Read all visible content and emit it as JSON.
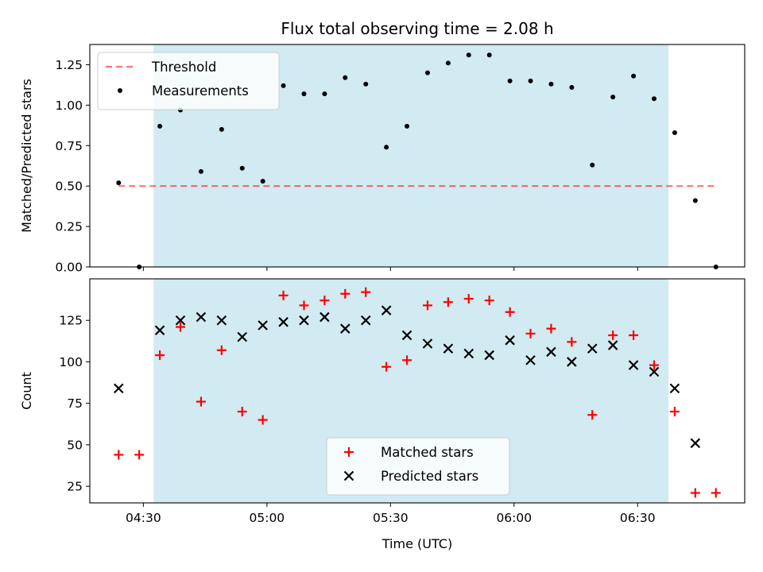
{
  "chart_data": {
    "title": "Flux total observing time = 2.08 h",
    "xlabel": "Time (UTC)",
    "x_ticks": [
      "04:30",
      "05:00",
      "05:30",
      "06:00",
      "06:30"
    ],
    "x_tick_minutes": [
      270,
      300,
      330,
      360,
      390
    ],
    "xlim_minutes": [
      257,
      416
    ],
    "shaded_span_minutes": [
      272.5,
      397.5
    ],
    "shade_color": "#add8e6",
    "panels": [
      {
        "type": "scatter",
        "ylabel": "Matched/Predicted stars",
        "ylim": [
          0,
          1.375
        ],
        "y_ticks": [
          "0.00",
          "0.25",
          "0.50",
          "0.75",
          "1.00",
          "1.25"
        ],
        "y_tick_values": [
          0,
          0.25,
          0.5,
          0.75,
          1.0,
          1.25
        ],
        "legend_position": "top-left",
        "threshold": {
          "name": "Threshold",
          "value": 0.5,
          "x_range": [
            264,
            409
          ],
          "color": "#ff0000",
          "style": "dashed"
        },
        "series": [
          {
            "name": "Measurements",
            "marker": "dot",
            "color": "#000000",
            "x": [
              264,
              269,
              274,
              279,
              284,
              289,
              294,
              299,
              304,
              309,
              314,
              319,
              324,
              329,
              334,
              339,
              344,
              349,
              354,
              359,
              364,
              369,
              374,
              379,
              384,
              389,
              394,
              399,
              404,
              409
            ],
            "y": [
              0.52,
              0.0,
              0.87,
              0.97,
              0.59,
              0.85,
              0.61,
              0.53,
              1.12,
              1.07,
              1.07,
              1.17,
              1.13,
              0.74,
              0.87,
              1.2,
              1.26,
              1.31,
              1.31,
              1.15,
              1.15,
              1.13,
              1.11,
              0.63,
              1.05,
              1.18,
              1.04,
              0.83,
              0.41,
              0.0
            ]
          }
        ]
      },
      {
        "type": "scatter",
        "ylabel": "Count",
        "ylim": [
          15,
          150
        ],
        "y_ticks": [
          "25",
          "50",
          "75",
          "100",
          "125"
        ],
        "y_tick_values": [
          25,
          50,
          75,
          100,
          125
        ],
        "legend_position": "bottom-center",
        "series": [
          {
            "name": "Matched stars",
            "marker": "plus",
            "color": "#ff0000",
            "x": [
              264,
              269,
              274,
              279,
              284,
              289,
              294,
              299,
              304,
              309,
              314,
              319,
              324,
              329,
              334,
              339,
              344,
              349,
              354,
              359,
              364,
              369,
              374,
              379,
              384,
              389,
              394,
              399,
              404,
              409
            ],
            "y": [
              44,
              44,
              104,
              121,
              76,
              107,
              70,
              65,
              140,
              134,
              137,
              141,
              142,
              97,
              101,
              134,
              136,
              138,
              137,
              130,
              117,
              120,
              112,
              68,
              116,
              116,
              98,
              70,
              21,
              21
            ]
          },
          {
            "name": "Predicted stars",
            "marker": "x",
            "color": "#000000",
            "x": [
              264,
              274,
              279,
              284,
              289,
              294,
              299,
              304,
              309,
              314,
              319,
              324,
              329,
              334,
              339,
              344,
              349,
              354,
              359,
              364,
              369,
              374,
              379,
              384,
              389,
              394,
              399,
              404
            ],
            "y": [
              84,
              119,
              125,
              127,
              125,
              115,
              122,
              124,
              125,
              127,
              120,
              125,
              131,
              116,
              111,
              108,
              105,
              104,
              113,
              101,
              106,
              100,
              108,
              110,
              98,
              94,
              84,
              51
            ]
          }
        ]
      }
    ]
  }
}
